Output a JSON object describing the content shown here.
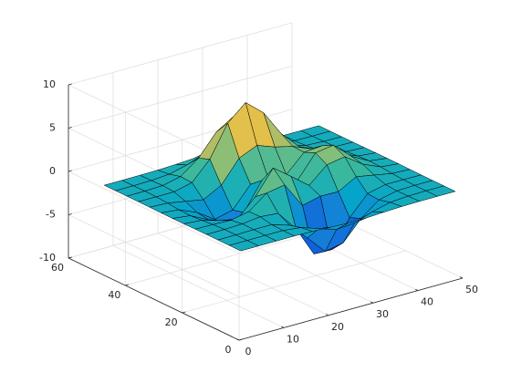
{
  "chart_data": {
    "type": "surface",
    "x": [
      1,
      5,
      9,
      13,
      17,
      21,
      25,
      29,
      33,
      37,
      41,
      45,
      49
    ],
    "y": [
      1,
      5,
      9,
      13,
      17,
      21,
      25,
      29,
      33,
      37,
      41,
      45,
      49
    ],
    "z": [
      [
        0,
        0,
        0,
        0,
        -0.03,
        -0.14,
        -0.24,
        -0.22,
        -0.11,
        -0.03,
        0,
        0,
        0
      ],
      [
        0,
        0,
        0.01,
        0,
        -0.23,
        -0.92,
        -1.57,
        -1.41,
        -0.69,
        -0.18,
        -0.03,
        0,
        0
      ],
      [
        0,
        0.01,
        0.05,
        0.05,
        -0.59,
        -2.64,
        -4.75,
        -4.34,
        -2.1,
        -0.53,
        -0.06,
        0,
        0
      ],
      [
        0,
        0.01,
        0.08,
        0.33,
        0.15,
        -2.19,
        -5.68,
        -5.76,
        -2.64,
        -0.44,
        0.04,
        0.03,
        0
      ],
      [
        -0.01,
        -0.06,
        -0.13,
        0.3,
        1.86,
        2.22,
        -0.72,
        -0.22,
        -0.27,
        0.88,
        0.5,
        0.11,
        0.01
      ],
      [
        -0.03,
        -0.2,
        -0.8,
        -1.21,
        0.8,
        3.55,
        2,
        0.39,
        2.2,
        2.56,
        1.12,
        0.24,
        0.03
      ],
      [
        -0.04,
        -0.3,
        -1.33,
        -2.77,
        -1.65,
        1.48,
        0.98,
        0.37,
        2.94,
        3.27,
        1.41,
        0.3,
        0.03
      ],
      [
        -0.03,
        -0.25,
        -1.12,
        -2.49,
        -2,
        0.39,
        0.46,
        0.37,
        2.38,
        2.56,
        1.09,
        0.23,
        0.03
      ],
      [
        -0.01,
        -0.11,
        -0.48,
        -0.86,
        0.23,
        2.79,
        3.69,
        2.93,
        2.43,
        1.58,
        0.58,
        0.11,
        0.01
      ],
      [
        0,
        -0.02,
        -0.01,
        0.48,
        2.61,
        6.2,
        8,
        6.25,
        3.25,
        1.19,
        0.29,
        0.05,
        0
      ],
      [
        0,
        0.01,
        0.08,
        0.55,
        2.09,
        4.55,
        5.85,
        4.56,
        2.21,
        0.68,
        0.13,
        0.02,
        0
      ],
      [
        0,
        0,
        0.03,
        0.19,
        0.69,
        1.47,
        1.88,
        1.47,
        0.7,
        0.2,
        0.04,
        0,
        0
      ],
      [
        0,
        0,
        0.01,
        0.03,
        0.11,
        0.23,
        0.3,
        0.23,
        0.11,
        0.03,
        0.01,
        0,
        0
      ]
    ],
    "xlim": [
      0,
      50
    ],
    "ylim": [
      0,
      60
    ],
    "zlim": [
      -10,
      10
    ],
    "xticks": [
      0,
      10,
      20,
      30,
      40,
      50
    ],
    "yticks": [
      0,
      20,
      40,
      60
    ],
    "zticks": [
      -10,
      -5,
      0,
      5,
      10
    ],
    "grid": true,
    "edge_color": "#000000",
    "colormap": [
      "#352a87",
      "#0f5cdd",
      "#1481d6",
      "#06a4ca",
      "#2eb7a4",
      "#87bf77",
      "#d1bb59",
      "#fec832",
      "#f9fb0e"
    ]
  }
}
